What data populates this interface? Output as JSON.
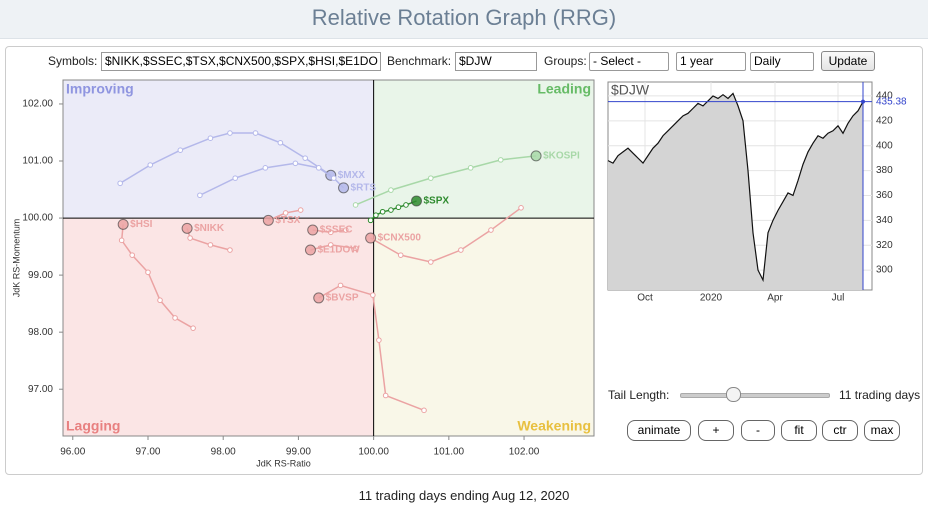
{
  "header": {
    "title": "Relative Rotation Graph (RRG)"
  },
  "toolbar": {
    "symbols_label": "Symbols:",
    "symbols": "$NIKK,$SSEC,$TSX,$CNX500,$SPX,$HSI,$E1DO",
    "benchmark_label": "Benchmark:",
    "benchmark": "$DJW",
    "groups_label": "Groups:",
    "groups": "- Select -",
    "period": "1 year",
    "frequency": "Daily",
    "update": "Update"
  },
  "chart_data": [
    {
      "type": "rrg",
      "xlabel": "JdK RS-Ratio",
      "ylabel": "JdK RS-Momentum",
      "quadrants": {
        "improving": "Improving",
        "leading": "Leading",
        "lagging": "Lagging",
        "weakening": "Weakening"
      },
      "xlim": [
        95.87,
        102.93
      ],
      "ylim": [
        96.18,
        102.42
      ],
      "xticks": [
        {
          "value": 96,
          "label": "96.00"
        },
        {
          "value": 97,
          "label": "97.00"
        },
        {
          "value": 98,
          "label": "98.00"
        },
        {
          "value": 99,
          "label": "99.00"
        },
        {
          "value": 100,
          "label": "100.00"
        },
        {
          "value": 101,
          "label": "101.00"
        },
        {
          "value": 102,
          "label": "102.00"
        }
      ],
      "yticks": [
        {
          "value": 97,
          "label": "97.00"
        },
        {
          "value": 98,
          "label": "98.00"
        },
        {
          "value": 99,
          "label": "99.00"
        },
        {
          "value": 100,
          "label": "100.00"
        },
        {
          "value": 101,
          "label": "101.00"
        },
        {
          "value": 102,
          "label": "102.00"
        }
      ],
      "series": [
        {
          "name": "$MXX",
          "color": "#b4b8ea",
          "x": [
            96.63,
            97.03,
            97.43,
            97.83,
            98.09,
            98.43,
            98.76,
            99.09,
            99.43
          ],
          "values": [
            100.61,
            100.93,
            101.19,
            101.4,
            101.49,
            101.49,
            101.32,
            101.05,
            100.75
          ]
        },
        {
          "name": "$RTS",
          "color": "#b4b8ea",
          "x": [
            97.69,
            98.16,
            98.56,
            98.96,
            99.27,
            99.47,
            99.6
          ],
          "values": [
            100.4,
            100.7,
            100.88,
            100.96,
            100.88,
            100.7,
            100.53
          ]
        },
        {
          "name": "$KOSPI",
          "color": "#a8d8a8",
          "x": [
            99.76,
            100.23,
            100.76,
            101.29,
            101.69,
            102.16
          ],
          "values": [
            100.23,
            100.49,
            100.7,
            100.88,
            101.02,
            101.09
          ]
        },
        {
          "name": "$SPX",
          "color": "#2e8b2e",
          "x": [
            99.96,
            100.03,
            100.12,
            100.23,
            100.33,
            100.43,
            100.57
          ],
          "values": [
            99.96,
            100.05,
            100.11,
            100.14,
            100.19,
            100.23,
            100.3
          ]
        },
        {
          "name": "$HSI",
          "color": "#eba3a3",
          "x": [
            97.6,
            97.36,
            97.16,
            97.0,
            96.79,
            96.65,
            96.67
          ],
          "values": [
            98.07,
            98.25,
            98.56,
            99.05,
            99.35,
            99.61,
            99.89
          ]
        },
        {
          "name": "$NIKK",
          "color": "#eba3a3",
          "x": [
            98.09,
            97.83,
            97.56,
            97.52
          ],
          "values": [
            99.44,
            99.53,
            99.65,
            99.82
          ]
        },
        {
          "name": "$TSX",
          "color": "#eba3a3",
          "x": [
            99.03,
            98.83,
            98.6
          ],
          "values": [
            100.14,
            100.09,
            99.96
          ]
        },
        {
          "name": "$SSEC",
          "color": "#eba3a3",
          "x": [
            99.63,
            99.43,
            99.19
          ],
          "values": [
            99.79,
            99.75,
            99.79
          ]
        },
        {
          "name": "$E1DOW",
          "color": "#eba3a3",
          "x": [
            99.76,
            99.43,
            99.16
          ],
          "values": [
            99.47,
            99.53,
            99.44
          ]
        },
        {
          "name": "$CNX500",
          "color": "#eba3a3",
          "x": [
            101.96,
            101.56,
            101.16,
            100.76,
            100.36,
            99.96
          ],
          "values": [
            100.18,
            99.79,
            99.44,
            99.23,
            99.35,
            99.65
          ]
        },
        {
          "name": "$BVSP",
          "color": "#eba3a3",
          "x": [
            100.67,
            100.16,
            100.07,
            99.99,
            99.56,
            99.27
          ],
          "values": [
            96.63,
            96.89,
            97.86,
            98.65,
            98.82,
            98.6
          ]
        }
      ]
    },
    {
      "type": "line",
      "title": "$DJW",
      "color": "#111111",
      "area_color": "#d4d4d4",
      "marker_color": "#3344cc",
      "values": [
        388,
        386,
        392,
        395,
        398,
        394,
        390,
        386,
        392,
        398,
        402,
        408,
        412,
        416,
        420,
        424,
        426,
        430,
        434,
        432,
        436,
        440,
        438,
        441,
        438,
        442,
        432,
        420,
        380,
        330,
        300,
        292,
        330,
        340,
        348,
        355,
        362,
        360,
        372,
        385,
        395,
        402,
        408,
        406,
        410,
        412,
        416,
        410,
        418,
        424,
        428,
        435.38
      ],
      "xlim": [
        0,
        52.8
      ],
      "ylim": [
        284,
        451.2
      ],
      "xticks": [
        {
          "value": 7.4,
          "label": "Oct"
        },
        {
          "value": 20.6,
          "label": "2020"
        },
        {
          "value": 33.4,
          "label": "Apr"
        },
        {
          "value": 46,
          "label": "Jul"
        }
      ],
      "yticks": [
        300,
        320,
        340,
        360,
        380,
        400,
        420,
        440
      ]
    }
  ],
  "controls": {
    "tail_label": "Tail Length:",
    "tail_value": "11 trading days",
    "buttons": [
      "animate",
      "+",
      "-",
      "fit",
      "ctr",
      "max"
    ]
  },
  "footer": "11 trading days ending Aug 12, 2020"
}
